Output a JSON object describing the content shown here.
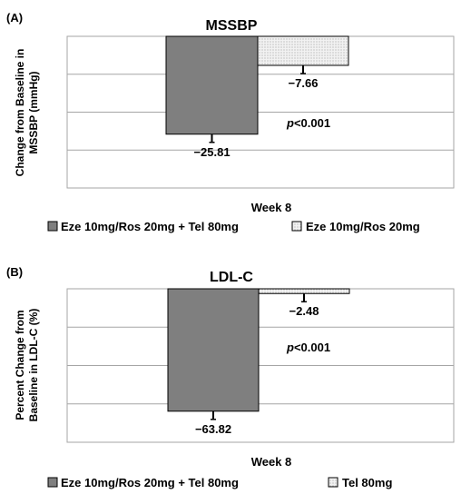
{
  "pattern_fill": "#f2f2f2",
  "pattern_dot": "#888888",
  "bar_color": "#7f7f7f",
  "chart_data": [
    {
      "panel_label": "(A)",
      "type": "bar",
      "title": "MSSBP",
      "ylabel": [
        "Change from Baseline in",
        "MSSBP (mmHg)"
      ],
      "xlabel": "Week 8",
      "ylim": [
        -40,
        0
      ],
      "grid": true,
      "legend_position": "bottom",
      "pvalue_prefix": "p",
      "pvalue_suffix": "<0.001",
      "series": [
        {
          "name": "Eze 10mg/Ros 20mg + Tel 80mg",
          "value": -25.81,
          "label": "−25.81",
          "fill": "#7f7f7f"
        },
        {
          "name": "Eze 10mg/Ros 20mg",
          "value": -7.66,
          "label": "−7.66",
          "fill": "dots"
        }
      ]
    },
    {
      "panel_label": "(B)",
      "type": "bar",
      "title": "LDL-C",
      "ylabel": [
        "Percent Change from",
        "Baseline in LDL-C (%)"
      ],
      "xlabel": "Week 8",
      "ylim": [
        -80,
        0
      ],
      "grid": true,
      "legend_position": "bottom",
      "pvalue_prefix": "p",
      "pvalue_suffix": "<0.001",
      "series": [
        {
          "name": "Eze 10mg/Ros 20mg + Tel 80mg",
          "value": -63.82,
          "label": "−63.82",
          "fill": "#7f7f7f"
        },
        {
          "name": "Tel 80mg",
          "value": -2.48,
          "label": "−2.48",
          "fill": "dots"
        }
      ]
    }
  ]
}
